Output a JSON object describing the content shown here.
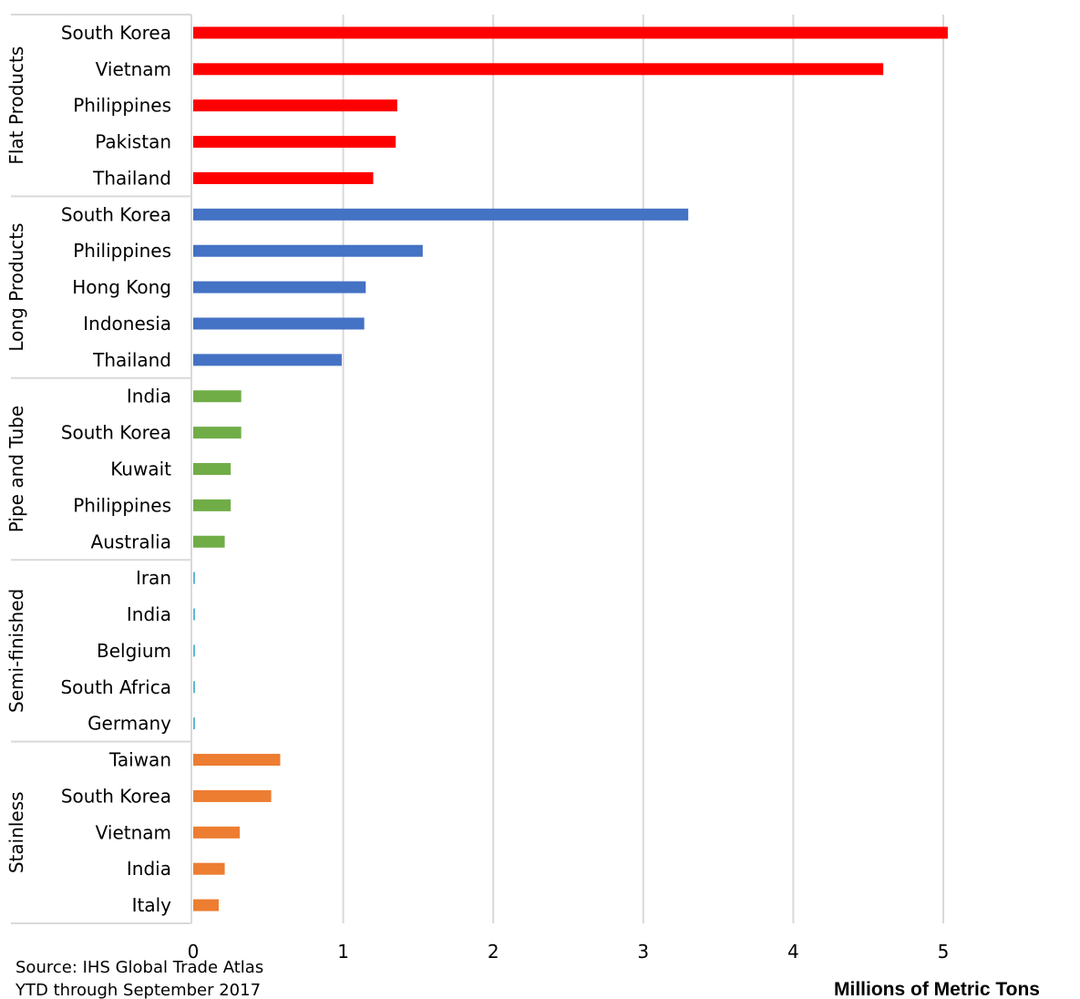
{
  "chart_data": {
    "type": "bar",
    "orientation": "horizontal",
    "xlabel": "Millions  of  Metric Tons",
    "xlim": [
      0,
      5
    ],
    "xticks": [
      "0",
      "1",
      "2",
      "3",
      "4",
      "5"
    ],
    "grid": true,
    "groups": [
      {
        "name": "Flat Products",
        "color": "#ff0000",
        "categories": [
          "South Korea",
          "Vietnam",
          "Philippines",
          "Pakistan",
          "Thailand"
        ],
        "values": [
          5.03,
          4.6,
          1.36,
          1.35,
          1.2
        ]
      },
      {
        "name": "Long Products",
        "color": "#4472c4",
        "categories": [
          "South Korea",
          "Philippines",
          "Hong Kong",
          "Indonesia",
          "Thailand"
        ],
        "values": [
          3.3,
          1.53,
          1.15,
          1.14,
          0.99
        ]
      },
      {
        "name": "Pipe and Tube",
        "color": "#70ad47",
        "categories": [
          "India",
          "South Korea",
          "Kuwait",
          "Philippines",
          "Australia"
        ],
        "values": [
          0.32,
          0.32,
          0.25,
          0.25,
          0.21
        ]
      },
      {
        "name": "Semi-finished",
        "color": "#5bb8d4",
        "categories": [
          "Iran",
          "India",
          "Belgium",
          "South Africa",
          "Germany"
        ],
        "values": [
          0.01,
          0.01,
          0.01,
          0.01,
          0.01
        ]
      },
      {
        "name": "Stainless",
        "color": "#ed7d31",
        "categories": [
          "Taiwan",
          "South Korea",
          "Vietnam",
          "India",
          "Italy"
        ],
        "values": [
          0.58,
          0.52,
          0.31,
          0.21,
          0.17
        ]
      }
    ]
  },
  "source": {
    "line1": "Source: IHS Global Trade Atlas",
    "line2": "YTD through September 2017"
  }
}
